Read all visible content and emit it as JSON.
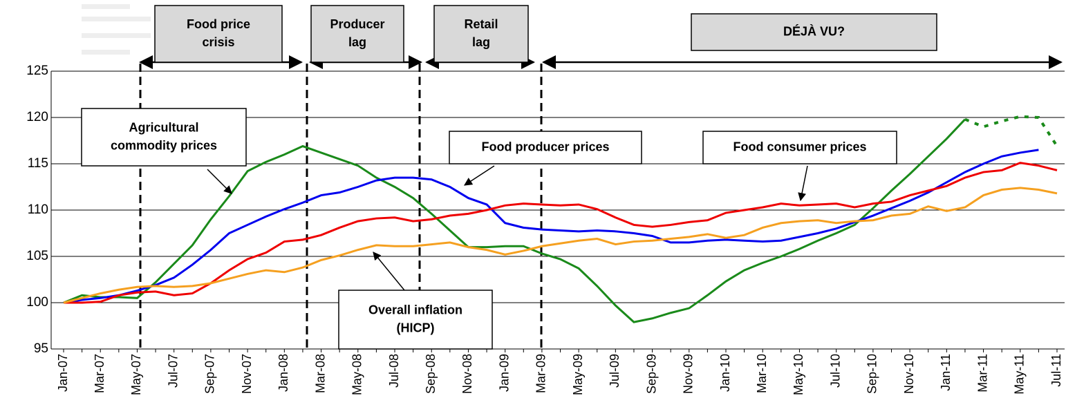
{
  "chart_data": {
    "type": "line",
    "categories": [
      "Jan-07",
      null,
      "Mar-07",
      null,
      "May-07",
      null,
      "Jul-07",
      null,
      "Sep-07",
      null,
      "Nov-07",
      null,
      "Jan-08",
      null,
      "Mar-08",
      null,
      "May-08",
      null,
      "Jul-08",
      null,
      "Sep-08",
      null,
      "Nov-08",
      null,
      "Jan-09",
      null,
      "Mar-09",
      null,
      "May-09",
      null,
      "Jul-09",
      null,
      "Sep-09",
      null,
      "Nov-09",
      null,
      "Jan-10",
      null,
      "Mar-10",
      null,
      "May-10",
      null,
      "Jul-10",
      null,
      "Sep-10",
      null,
      "Nov-10",
      null,
      "Jan-11",
      null,
      "Mar-11",
      null,
      "May-11",
      null,
      "Jul-11"
    ],
    "series": [
      {
        "color": "#1a8a1a",
        "forecast_from": 49,
        "values": [
          100,
          100.8,
          100.6,
          100.6,
          100.5,
          102.2,
          104.2,
          106.2,
          109,
          111.5,
          114.2,
          115.2,
          116,
          116.9,
          116.2,
          115.5,
          114.8,
          113.5,
          112.5,
          111.3,
          109.6,
          107.8,
          106,
          106,
          106.1,
          106.1,
          105.3,
          104.7,
          103.7,
          101.8,
          99.7,
          97.9,
          98.3,
          98.9,
          99.4,
          100.8,
          102.3,
          103.5,
          104.3,
          105,
          105.8,
          106.7,
          107.5,
          108.4,
          110.2,
          112.1,
          113.9,
          115.8,
          117.7,
          119.8,
          119,
          119.6,
          120.1,
          120,
          116.9
        ]
      },
      {
        "color": "#0000ee",
        "values": [
          100,
          100.3,
          100.5,
          100.8,
          101.3,
          101.9,
          102.7,
          104.1,
          105.7,
          107.5,
          108.4,
          109.3,
          110.1,
          110.8,
          111.6,
          111.9,
          112.5,
          113.2,
          113.5,
          113.5,
          113.3,
          112.5,
          111.3,
          110.6,
          108.6,
          108.1,
          107.9,
          107.8,
          107.7,
          107.8,
          107.7,
          107.5,
          107.2,
          106.5,
          106.5,
          106.7,
          106.8,
          106.7,
          106.6,
          106.7,
          107.1,
          107.5,
          108,
          108.7,
          109.4,
          110.2,
          111,
          111.9,
          113,
          114.1,
          115,
          115.8,
          116.2,
          116.5,
          null
        ]
      },
      {
        "color": "#ee0000",
        "values": [
          100,
          100,
          100.1,
          100.8,
          101.1,
          101.2,
          100.8,
          101,
          102.1,
          103.5,
          104.7,
          105.4,
          106.6,
          106.8,
          107.3,
          108.1,
          108.8,
          109.1,
          109.2,
          108.8,
          109,
          109.4,
          109.6,
          110,
          110.5,
          110.7,
          110.6,
          110.5,
          110.6,
          110.1,
          109.2,
          108.4,
          108.2,
          108.4,
          108.7,
          108.9,
          109.7,
          110,
          110.3,
          110.7,
          110.5,
          110.6,
          110.7,
          110.3,
          110.7,
          110.9,
          111.6,
          112.1,
          112.6,
          113.5,
          114.1,
          114.3,
          115.1,
          114.8,
          114.3
        ]
      },
      {
        "color": "#f5a020",
        "values": [
          100,
          100.5,
          101,
          101.4,
          101.7,
          101.8,
          101.7,
          101.8,
          102.1,
          102.6,
          103.1,
          103.5,
          103.3,
          103.8,
          104.6,
          105.1,
          105.7,
          106.2,
          106.1,
          106.1,
          106.3,
          106.5,
          106,
          105.7,
          105.2,
          105.6,
          106.1,
          106.4,
          106.7,
          106.9,
          106.3,
          106.6,
          106.7,
          106.9,
          107.1,
          107.4,
          107,
          107.3,
          108.1,
          108.6,
          108.8,
          108.9,
          108.6,
          108.8,
          108.9,
          109.4,
          109.6,
          110.4,
          109.9,
          110.3,
          111.6,
          112.2,
          112.4,
          112.2,
          111.8
        ]
      }
    ],
    "ylim": [
      95,
      125
    ],
    "yticks": [
      95,
      100,
      105,
      110,
      115,
      120,
      125
    ],
    "grid": true,
    "phases": [
      {
        "lines": [
          "Food price",
          "crisis"
        ]
      },
      {
        "lines": [
          "Producer",
          "lag"
        ]
      },
      {
        "lines": [
          "Retail",
          "lag"
        ]
      },
      {
        "lines": [
          "DÉJÀ VU?"
        ]
      }
    ],
    "annotations": [
      {
        "lines": [
          "Agricultural",
          "commodity prices"
        ]
      },
      {
        "lines": [
          "Food producer prices"
        ]
      },
      {
        "lines": [
          "Food consumer prices"
        ]
      },
      {
        "lines": [
          "Overall inflation",
          "(HICP)"
        ]
      }
    ]
  }
}
